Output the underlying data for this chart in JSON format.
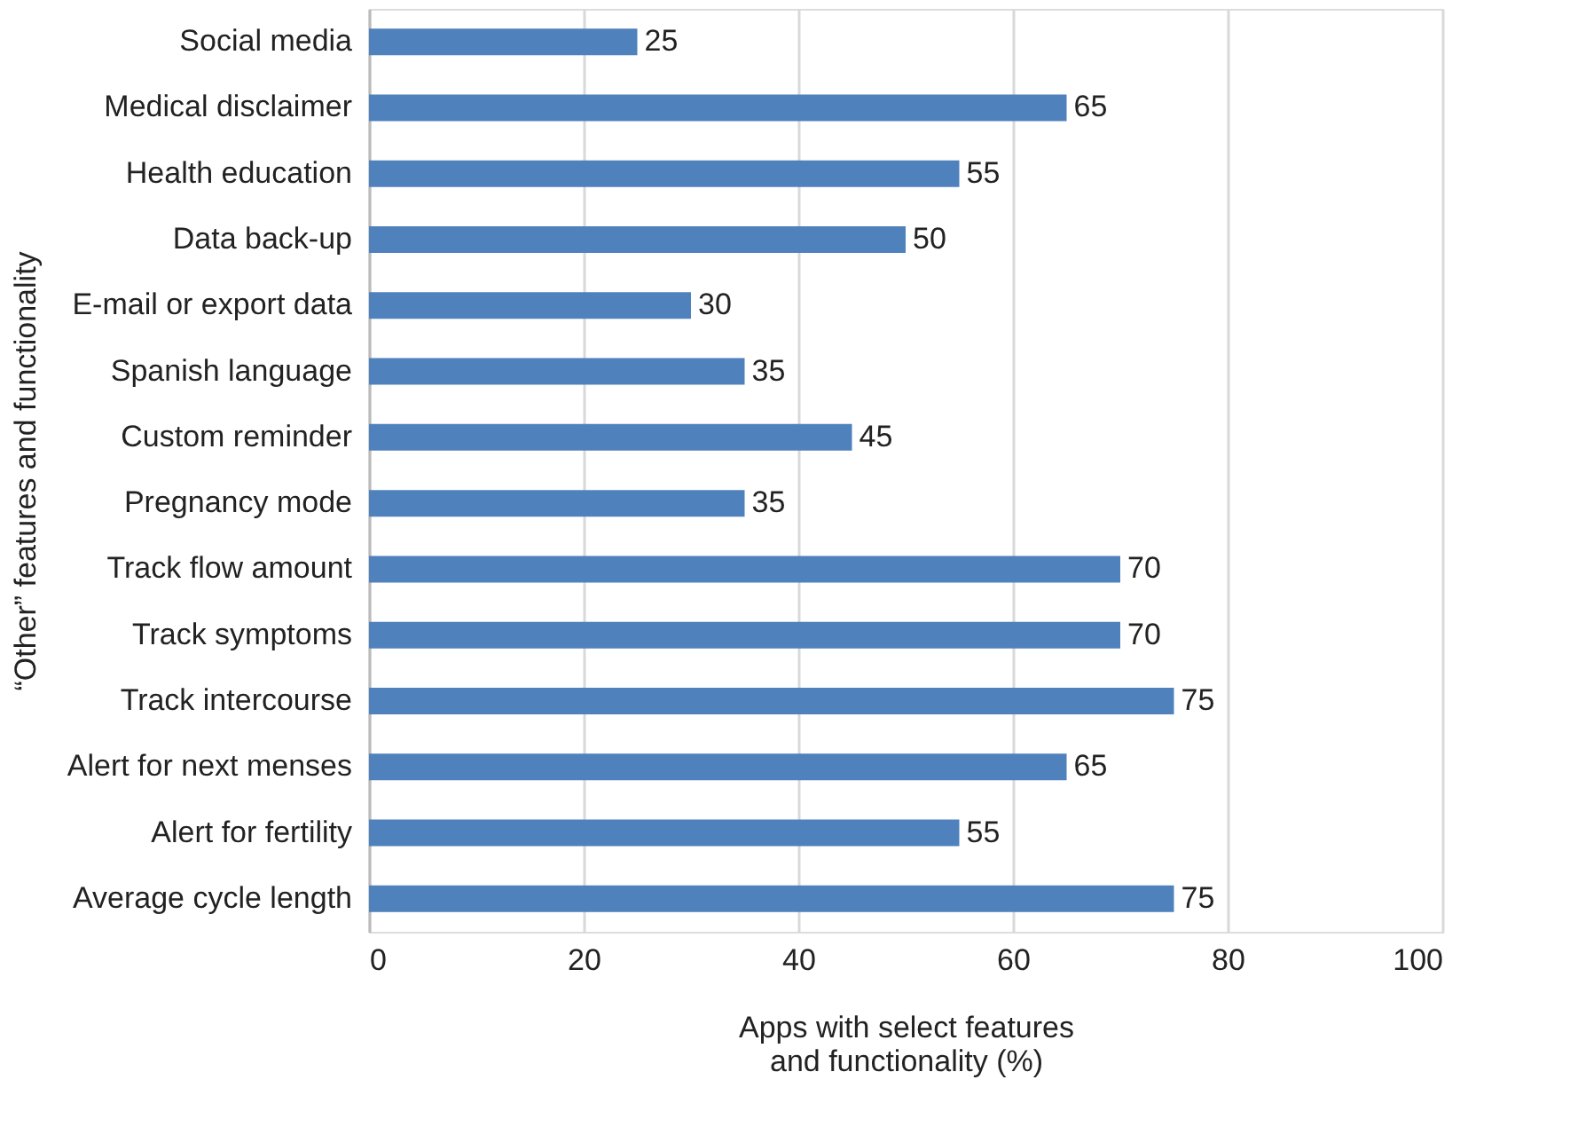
{
  "chart_data": {
    "type": "bar",
    "orientation": "horizontal",
    "categories": [
      "Social media",
      "Medical disclaimer",
      "Health education",
      "Data back-up",
      "E-mail or export data",
      "Spanish language",
      "Custom reminder",
      "Pregnancy mode",
      "Track flow amount",
      "Track symptoms",
      "Track intercourse",
      "Alert for next menses",
      "Alert for fertility",
      "Average cycle length"
    ],
    "values": [
      25,
      65,
      55,
      50,
      30,
      35,
      45,
      35,
      70,
      70,
      75,
      65,
      55,
      75
    ],
    "color": "#4f81bd",
    "xlim": [
      0,
      100
    ],
    "xticks": [
      0,
      20,
      40,
      60,
      80,
      100
    ],
    "xlabel": "Apps with select features\nand functionality (%)",
    "ylabel": "“Other” features and functionality",
    "grid": "x",
    "data_labels": true
  }
}
